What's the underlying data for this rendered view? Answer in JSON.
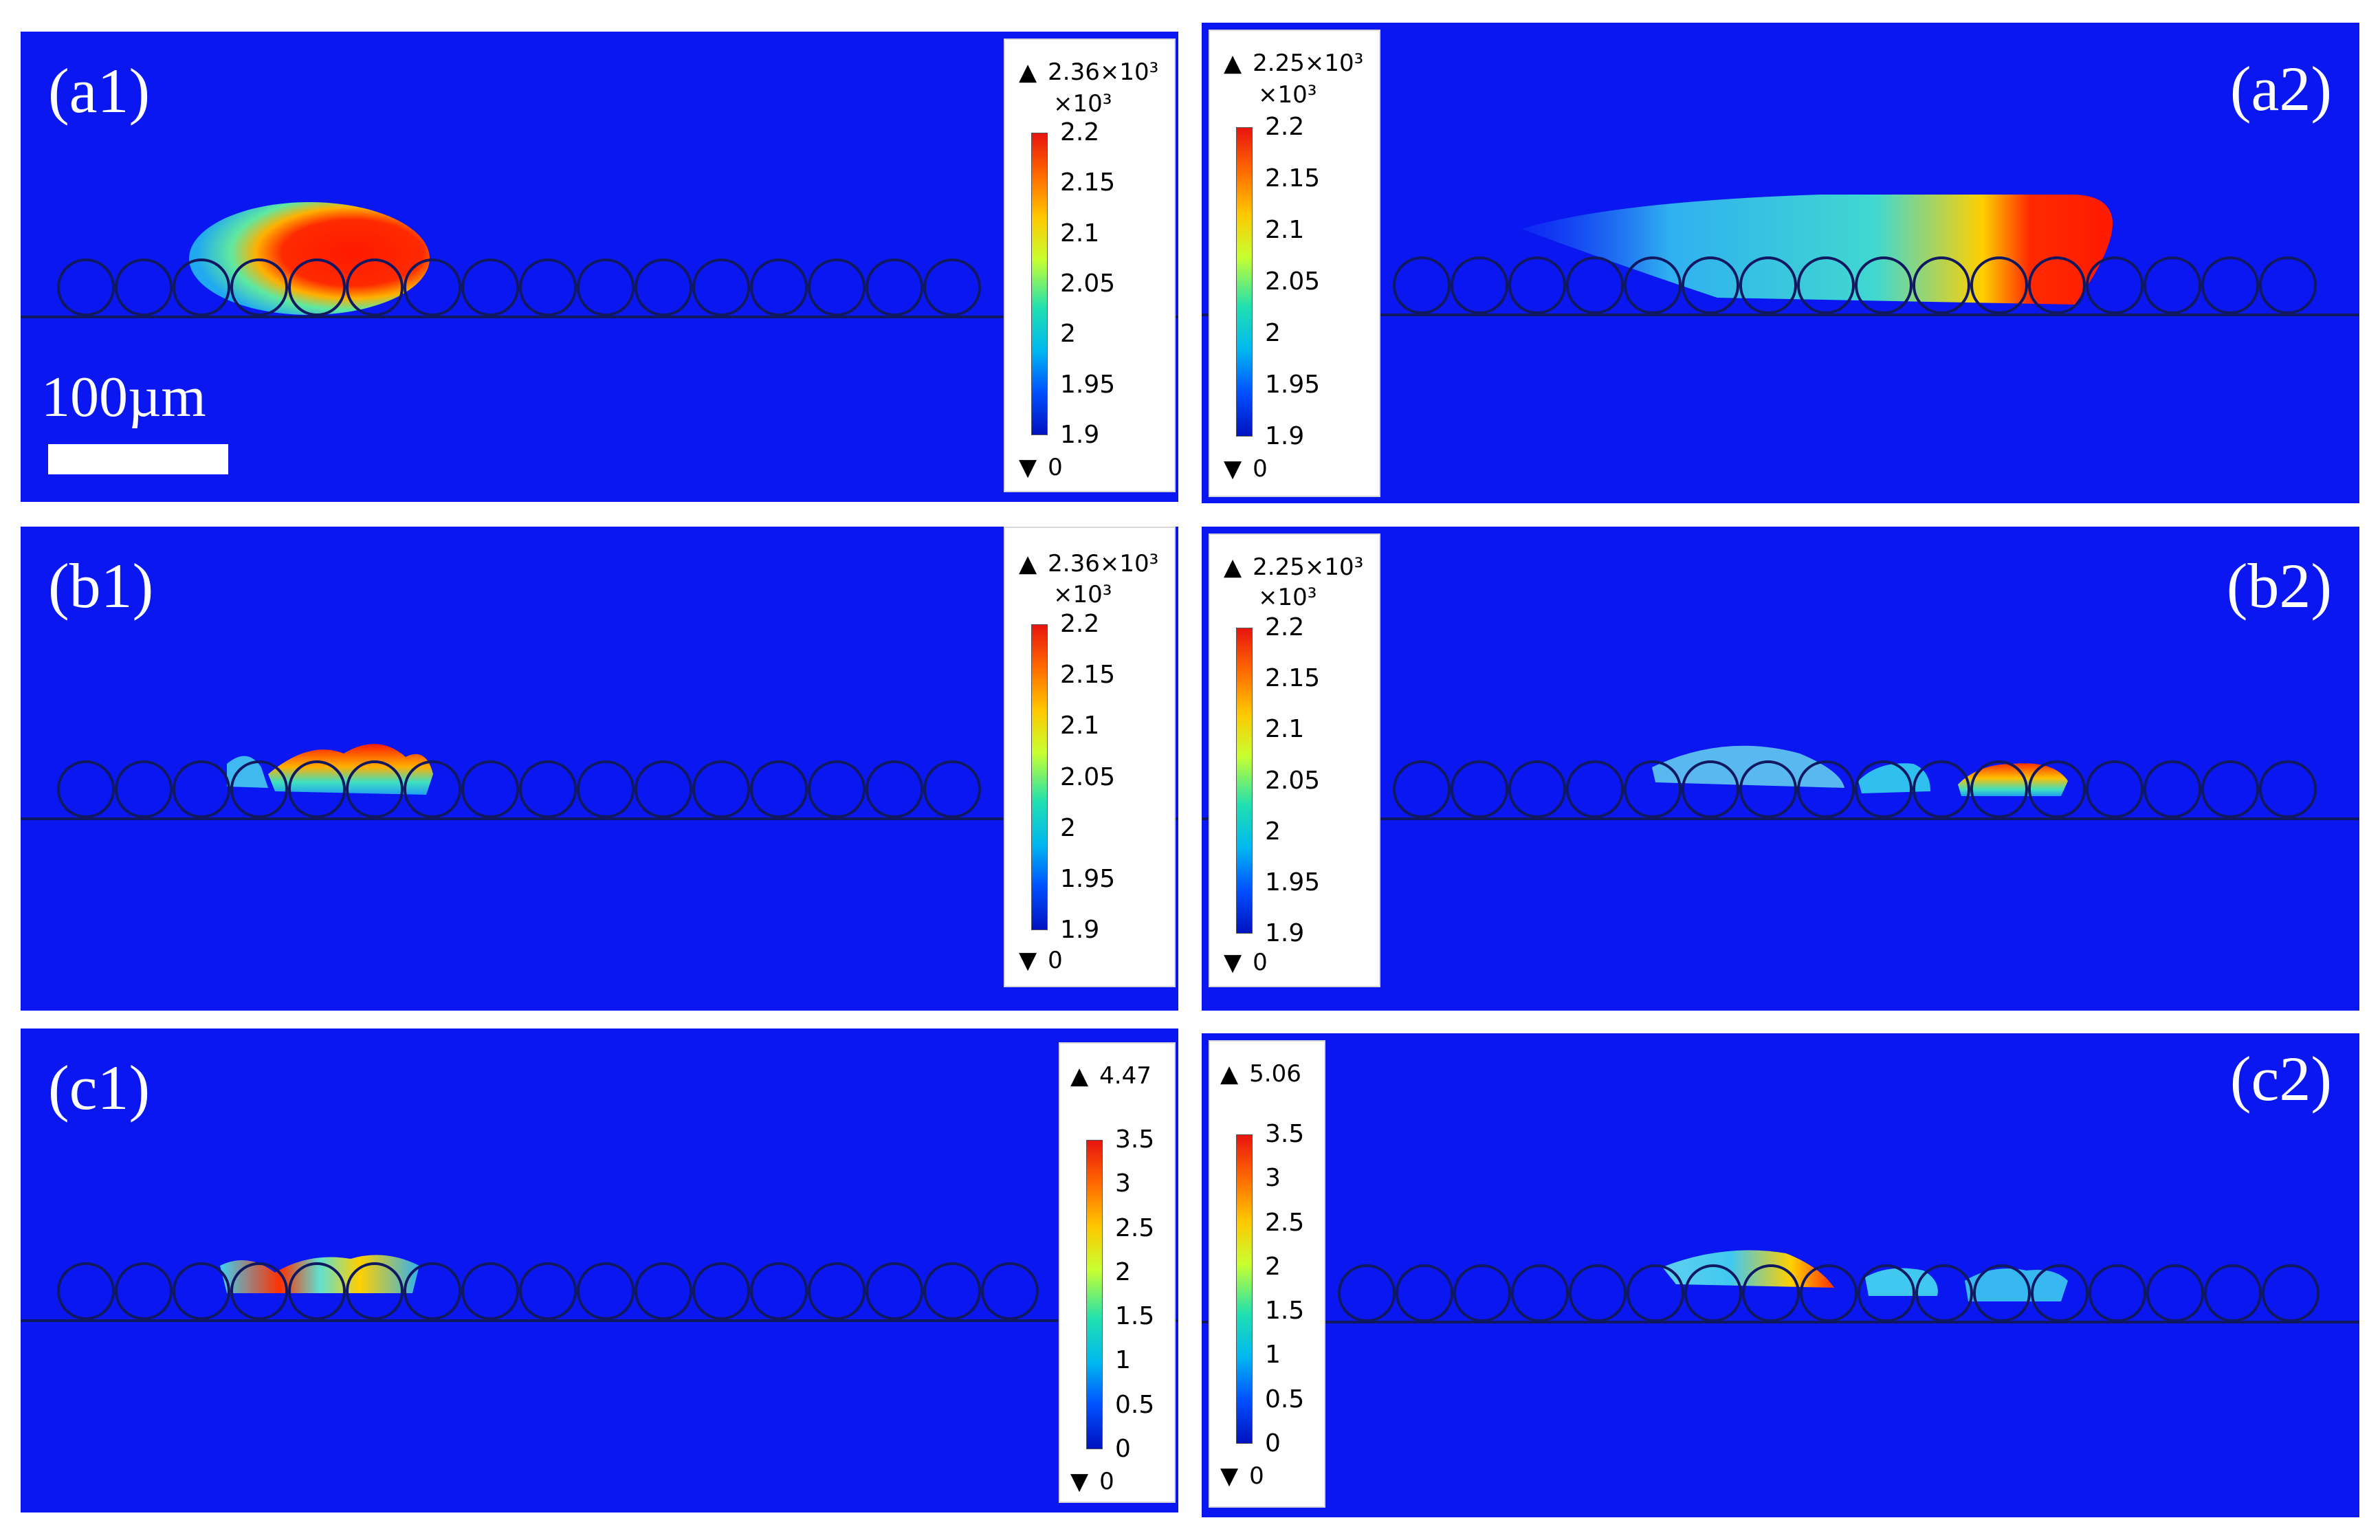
{
  "panels": {
    "a1": {
      "label": "(a1)",
      "legend": {
        "max": "2.36×10³",
        "mult": "×10³",
        "ticks": [
          "2.2",
          "2.15",
          "2.1",
          "2.05",
          "2",
          "1.95",
          "1.9"
        ],
        "min": "0"
      }
    },
    "a2": {
      "label": "(a2)",
      "legend": {
        "max": "2.25×10³",
        "mult": "×10³",
        "ticks": [
          "2.2",
          "2.15",
          "2.1",
          "2.05",
          "2",
          "1.95",
          "1.9"
        ],
        "min": "0"
      }
    },
    "b1": {
      "label": "(b1)",
      "legend": {
        "max": "2.36×10³",
        "mult": "×10³",
        "ticks": [
          "2.2",
          "2.15",
          "2.1",
          "2.05",
          "2",
          "1.95",
          "1.9"
        ],
        "min": "0"
      }
    },
    "b2": {
      "label": "(b2)",
      "legend": {
        "max": "2.25×10³",
        "mult": "×10³",
        "ticks": [
          "2.2",
          "2.15",
          "2.1",
          "2.05",
          "2",
          "1.95",
          "1.9"
        ],
        "min": "0"
      }
    },
    "c1": {
      "label": "(c1)",
      "legend": {
        "max": "4.47",
        "ticks": [
          "3.5",
          "3",
          "2.5",
          "2",
          "1.5",
          "1",
          "0.5",
          "0"
        ],
        "min": "0"
      }
    },
    "c2": {
      "label": "(c2)",
      "legend": {
        "max": "5.06",
        "ticks": [
          "3.5",
          "3",
          "2.5",
          "2",
          "1.5",
          "1",
          "0.5",
          "0"
        ],
        "min": "0"
      }
    }
  },
  "scale_bar": {
    "label": "100µm"
  },
  "colors": {
    "background": "#0a17f0",
    "hot": "#ff1a00",
    "warm": "#ffd000",
    "mid": "#30e8c0",
    "cool": "#00a0ff"
  }
}
